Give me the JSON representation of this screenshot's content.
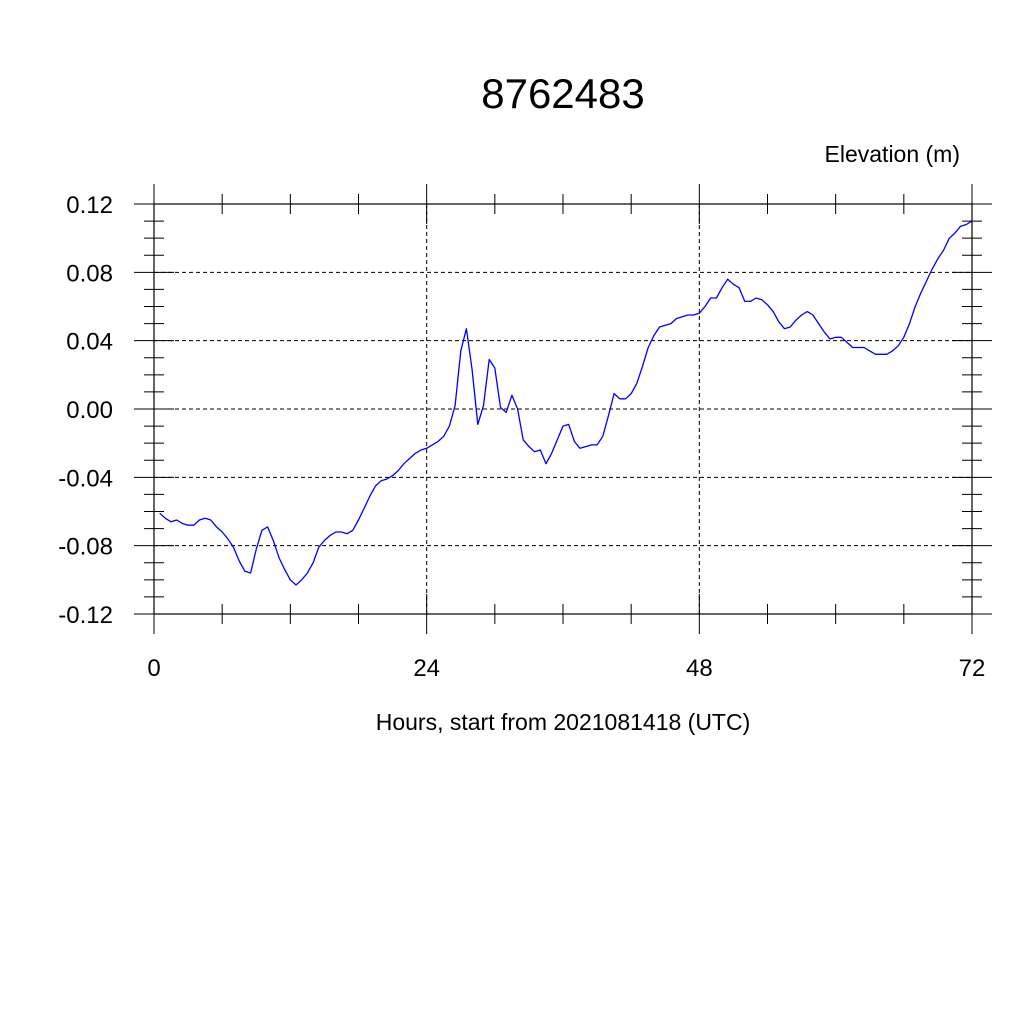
{
  "chart_data": {
    "type": "line",
    "title": "8762483",
    "ylabel": "Elevation (m)",
    "xlabel": "Hours, start from 2021081418 (UTC)",
    "xlim": [
      0,
      72
    ],
    "ylim": [
      -0.12,
      0.12
    ],
    "x_ticks": [
      0,
      24,
      48,
      72
    ],
    "x_tick_labels": [
      "0",
      "24",
      "48",
      "72"
    ],
    "y_ticks": [
      -0.12,
      -0.08,
      -0.04,
      0.0,
      0.04,
      0.08,
      0.12
    ],
    "y_tick_labels": [
      "-0.12",
      "-0.08",
      "-0.04",
      "0.00",
      "0.04",
      "0.08",
      "0.12"
    ],
    "grid": true,
    "series": [
      {
        "color": "#0000ff",
        "x": [
          0.5,
          1.0,
          1.5,
          2.0,
          2.5,
          3.0,
          3.5,
          4.0,
          4.5,
          5.0,
          5.5,
          6.0,
          6.5,
          7.0,
          7.5,
          8.0,
          8.5,
          9.0,
          9.5,
          10.0,
          10.5,
          11.0,
          11.5,
          12.0,
          12.5,
          13.0,
          13.5,
          14.0,
          14.5,
          15.0,
          15.5,
          16.0,
          16.5,
          17.0,
          17.5,
          18.0,
          18.5,
          19.0,
          19.5,
          20.0,
          20.5,
          21.0,
          21.5,
          22.0,
          22.5,
          23.0,
          23.5,
          24.0,
          24.5,
          25.0,
          25.5,
          26.0,
          26.5,
          27.0,
          27.5,
          28.0,
          28.5,
          29.0,
          29.5,
          30.0,
          30.5,
          31.0,
          31.5,
          32.0,
          32.5,
          33.0,
          33.5,
          34.0,
          34.5,
          35.0,
          35.5,
          36.0,
          36.5,
          37.0,
          37.5,
          38.0,
          38.5,
          39.0,
          39.5,
          40.0,
          40.5,
          41.0,
          41.5,
          42.0,
          42.5,
          43.0,
          43.5,
          44.0,
          44.5,
          45.0,
          45.5,
          46.0,
          46.5,
          47.0,
          47.5,
          48.0,
          48.5,
          49.0,
          49.5,
          50.0,
          50.5,
          51.0,
          51.5,
          52.0,
          52.5,
          53.0,
          53.5,
          54.0,
          54.5,
          55.0,
          55.5,
          56.0,
          56.5,
          57.0,
          57.5,
          58.0,
          58.5,
          59.0,
          59.5,
          60.0,
          60.5,
          61.0,
          61.5,
          62.0,
          62.5,
          63.0,
          63.5,
          64.0,
          64.5,
          65.0,
          65.5,
          66.0,
          66.5,
          67.0,
          67.5,
          68.0,
          68.5,
          69.0,
          69.5,
          70.0,
          70.5,
          71.0,
          71.5,
          72.0
        ],
        "y": [
          -0.061,
          -0.064,
          -0.066,
          -0.065,
          -0.067,
          -0.068,
          -0.068,
          -0.065,
          -0.064,
          -0.065,
          -0.069,
          -0.072,
          -0.076,
          -0.081,
          -0.089,
          -0.095,
          -0.096,
          -0.082,
          -0.071,
          -0.069,
          -0.077,
          -0.087,
          -0.094,
          -0.1,
          -0.103,
          -0.1,
          -0.096,
          -0.09,
          -0.081,
          -0.077,
          -0.074,
          -0.072,
          -0.072,
          -0.073,
          -0.071,
          -0.065,
          -0.058,
          -0.051,
          -0.045,
          -0.042,
          -0.041,
          -0.039,
          -0.036,
          -0.032,
          -0.029,
          -0.026,
          -0.024,
          -0.023,
          -0.021,
          -0.019,
          -0.016,
          -0.01,
          0.002,
          0.034,
          0.047,
          0.023,
          -0.009,
          0.002,
          0.029,
          0.024,
          0.001,
          -0.002,
          0.008,
          0.0,
          -0.018,
          -0.022,
          -0.025,
          -0.024,
          -0.032,
          -0.026,
          -0.018,
          -0.01,
          -0.009,
          -0.019,
          -0.023,
          -0.022,
          -0.021,
          -0.021,
          -0.016,
          -0.004,
          0.009,
          0.006,
          0.006,
          0.009,
          0.015,
          0.025,
          0.036,
          0.043,
          0.048,
          0.049,
          0.05,
          0.053,
          0.054,
          0.055,
          0.055,
          0.056,
          0.06,
          0.065,
          0.065,
          0.071,
          0.076,
          0.073,
          0.071,
          0.063,
          0.063,
          0.065,
          0.064,
          0.061,
          0.057,
          0.051,
          0.047,
          0.048,
          0.052,
          0.055,
          0.057,
          0.055,
          0.05,
          0.045,
          0.041,
          0.042,
          0.042,
          0.039,
          0.036,
          0.036,
          0.036,
          0.034,
          0.032,
          0.032,
          0.032,
          0.034,
          0.037,
          0.042,
          0.05,
          0.06,
          0.068,
          0.075,
          0.082,
          0.088,
          0.093,
          0.1,
          0.103,
          0.107,
          0.108,
          0.11
        ]
      }
    ]
  }
}
